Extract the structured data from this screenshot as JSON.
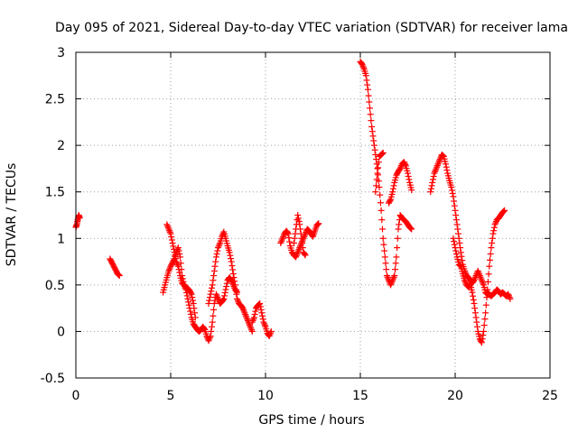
{
  "chart_data": {
    "type": "scatter",
    "title": "Day 095 of 2021, Sidereal Day-to-day VTEC variation (SDTVAR) for receiver lama",
    "xlabel": "GPS time / hours",
    "ylabel": "SDTVAR / TECUs",
    "xlim": [
      0,
      25
    ],
    "ylim": [
      -0.5,
      3
    ],
    "xticks": [
      0,
      5,
      10,
      15,
      20,
      25
    ],
    "xtick_labels": [
      "0",
      "5",
      "10",
      "15",
      "20",
      "25"
    ],
    "yticks": [
      -0.5,
      0,
      0.5,
      1,
      1.5,
      2,
      2.5,
      3
    ],
    "ytick_labels": [
      "-0.5",
      "0",
      "0.5",
      "1",
      "1.5",
      "2",
      "2.5",
      "3"
    ],
    "grid": true,
    "marker": "+",
    "color": "#ff0000",
    "series": [
      {
        "name": "SDTVAR",
        "segments": [
          [
            [
              0.0,
              1.12
            ],
            [
              0.05,
              1.15
            ],
            [
              0.1,
              1.2
            ],
            [
              0.15,
              1.25
            ],
            [
              0.2,
              1.22
            ]
          ],
          [
            [
              1.8,
              0.78
            ],
            [
              1.9,
              0.74
            ],
            [
              2.0,
              0.7
            ],
            [
              2.1,
              0.66
            ],
            [
              2.2,
              0.62
            ],
            [
              2.3,
              0.6
            ]
          ],
          [
            [
              4.6,
              0.42
            ],
            [
              4.7,
              0.5
            ],
            [
              4.8,
              0.58
            ],
            [
              4.9,
              0.65
            ],
            [
              5.0,
              0.7
            ],
            [
              5.1,
              0.74
            ],
            [
              5.2,
              0.78
            ],
            [
              5.3,
              0.85
            ],
            [
              5.4,
              0.9
            ],
            [
              5.5,
              0.8
            ],
            [
              5.6,
              0.6
            ],
            [
              5.7,
              0.5
            ],
            [
              5.8,
              0.45
            ],
            [
              5.9,
              0.35
            ],
            [
              6.0,
              0.25
            ],
            [
              6.1,
              0.15
            ],
            [
              6.2,
              0.08
            ],
            [
              6.3,
              0.05
            ],
            [
              6.4,
              0.02
            ],
            [
              6.5,
              0.0
            ],
            [
              6.6,
              0.02
            ],
            [
              6.7,
              0.05
            ],
            [
              6.8,
              0.02
            ],
            [
              6.9,
              -0.05
            ],
            [
              7.0,
              -0.1
            ],
            [
              7.1,
              -0.05
            ],
            [
              7.2,
              0.1
            ],
            [
              7.3,
              0.3
            ],
            [
              7.4,
              0.4
            ],
            [
              7.5,
              0.35
            ],
            [
              7.6,
              0.3
            ],
            [
              7.7,
              0.32
            ],
            [
              7.8,
              0.35
            ],
            [
              7.9,
              0.45
            ],
            [
              8.0,
              0.55
            ],
            [
              8.1,
              0.58
            ],
            [
              8.2,
              0.55
            ],
            [
              8.3,
              0.5
            ],
            [
              8.4,
              0.45
            ],
            [
              8.5,
              0.42
            ]
          ],
          [
            [
              4.8,
              1.15
            ],
            [
              4.9,
              1.1
            ],
            [
              5.0,
              1.05
            ],
            [
              5.1,
              0.95
            ],
            [
              5.2,
              0.85
            ],
            [
              5.3,
              0.75
            ],
            [
              5.4,
              0.7
            ],
            [
              5.5,
              0.6
            ],
            [
              5.6,
              0.52
            ],
            [
              5.7,
              0.5
            ],
            [
              5.8,
              0.48
            ],
            [
              5.9,
              0.46
            ],
            [
              6.0,
              0.44
            ],
            [
              6.1,
              0.4
            ],
            [
              6.2,
              0.3
            ],
            [
              6.3,
              0.15
            ]
          ],
          [
            [
              7.0,
              0.3
            ],
            [
              7.1,
              0.4
            ],
            [
              7.2,
              0.5
            ],
            [
              7.3,
              0.65
            ],
            [
              7.4,
              0.8
            ],
            [
              7.5,
              0.9
            ],
            [
              7.6,
              0.95
            ],
            [
              7.7,
              1.02
            ],
            [
              7.8,
              1.07
            ],
            [
              7.9,
              1.0
            ],
            [
              8.0,
              0.92
            ],
            [
              8.1,
              0.85
            ],
            [
              8.2,
              0.75
            ],
            [
              8.3,
              0.62
            ],
            [
              8.4,
              0.5
            ],
            [
              8.5,
              0.35
            ],
            [
              8.6,
              0.3
            ],
            [
              8.7,
              0.28
            ],
            [
              8.8,
              0.25
            ],
            [
              8.9,
              0.2
            ],
            [
              9.0,
              0.15
            ],
            [
              9.1,
              0.1
            ],
            [
              9.2,
              0.05
            ],
            [
              9.3,
              0.0
            ]
          ],
          [
            [
              9.3,
              0.1
            ],
            [
              9.4,
              0.15
            ],
            [
              9.5,
              0.25
            ],
            [
              9.6,
              0.28
            ],
            [
              9.7,
              0.3
            ],
            [
              9.8,
              0.2
            ],
            [
              9.9,
              0.1
            ],
            [
              10.0,
              0.05
            ],
            [
              10.1,
              -0.02
            ],
            [
              10.2,
              -0.05
            ],
            [
              10.3,
              0.0
            ]
          ],
          [
            [
              10.8,
              0.95
            ],
            [
              10.9,
              1.0
            ],
            [
              11.0,
              1.05
            ],
            [
              11.1,
              1.08
            ],
            [
              11.2,
              1.05
            ],
            [
              11.3,
              0.92
            ],
            [
              11.4,
              0.85
            ],
            [
              11.5,
              0.82
            ],
            [
              11.6,
              0.8
            ],
            [
              11.7,
              0.85
            ],
            [
              11.8,
              0.9
            ],
            [
              11.9,
              0.95
            ],
            [
              12.0,
              1.0
            ],
            [
              12.1,
              1.05
            ],
            [
              12.2,
              1.1
            ],
            [
              12.3,
              1.08
            ],
            [
              12.4,
              1.05
            ],
            [
              12.5,
              1.02
            ],
            [
              12.6,
              1.08
            ],
            [
              12.7,
              1.14
            ],
            [
              12.8,
              1.16
            ]
          ],
          [
            [
              11.5,
              0.95
            ],
            [
              11.6,
              1.1
            ],
            [
              11.7,
              1.25
            ],
            [
              11.8,
              1.15
            ],
            [
              11.9,
              1.0
            ],
            [
              12.0,
              0.85
            ],
            [
              12.1,
              0.82
            ]
          ],
          [
            [
              15.0,
              2.9
            ],
            [
              15.1,
              2.87
            ],
            [
              15.2,
              2.82
            ],
            [
              15.3,
              2.75
            ],
            [
              15.4,
              2.6
            ],
            [
              15.5,
              2.4
            ],
            [
              15.6,
              2.2
            ],
            [
              15.7,
              2.05
            ],
            [
              15.8,
              1.9
            ],
            [
              15.9,
              1.75
            ],
            [
              16.0,
              1.55
            ],
            [
              16.1,
              1.3
            ],
            [
              16.2,
              1.0
            ],
            [
              16.3,
              0.8
            ],
            [
              16.4,
              0.6
            ],
            [
              16.5,
              0.55
            ],
            [
              16.6,
              0.5
            ],
            [
              16.7,
              0.55
            ],
            [
              16.8,
              0.6
            ],
            [
              16.9,
              0.8
            ],
            [
              17.0,
              1.1
            ],
            [
              17.1,
              1.25
            ],
            [
              17.2,
              1.22
            ],
            [
              17.3,
              1.2
            ],
            [
              17.4,
              1.18
            ],
            [
              17.5,
              1.15
            ],
            [
              17.6,
              1.12
            ],
            [
              17.7,
              1.1
            ]
          ],
          [
            [
              15.8,
              1.5
            ],
            [
              15.9,
              1.7
            ],
            [
              16.0,
              1.88
            ],
            [
              16.1,
              1.9
            ],
            [
              16.2,
              1.92
            ]
          ],
          [
            [
              16.5,
              1.38
            ],
            [
              16.6,
              1.42
            ],
            [
              16.7,
              1.5
            ],
            [
              16.8,
              1.6
            ],
            [
              16.9,
              1.68
            ],
            [
              17.0,
              1.72
            ],
            [
              17.1,
              1.75
            ],
            [
              17.2,
              1.8
            ],
            [
              17.3,
              1.82
            ],
            [
              17.4,
              1.78
            ],
            [
              17.5,
              1.7
            ],
            [
              17.6,
              1.6
            ],
            [
              17.7,
              1.52
            ]
          ],
          [
            [
              18.7,
              1.5
            ],
            [
              18.8,
              1.6
            ],
            [
              18.9,
              1.7
            ],
            [
              19.0,
              1.75
            ],
            [
              19.1,
              1.8
            ],
            [
              19.2,
              1.85
            ],
            [
              19.3,
              1.9
            ],
            [
              19.4,
              1.88
            ],
            [
              19.5,
              1.8
            ],
            [
              19.6,
              1.7
            ],
            [
              19.7,
              1.62
            ],
            [
              19.8,
              1.55
            ],
            [
              19.9,
              1.45
            ],
            [
              20.0,
              1.3
            ],
            [
              20.1,
              1.15
            ],
            [
              20.2,
              1.0
            ],
            [
              20.3,
              0.85
            ],
            [
              20.4,
              0.72
            ],
            [
              20.5,
              0.65
            ],
            [
              20.6,
              0.6
            ],
            [
              20.7,
              0.58
            ],
            [
              20.8,
              0.55
            ],
            [
              20.9,
              0.52
            ],
            [
              21.0,
              0.55
            ],
            [
              21.1,
              0.6
            ],
            [
              21.2,
              0.65
            ],
            [
              21.3,
              0.6
            ],
            [
              21.4,
              0.55
            ],
            [
              21.5,
              0.5
            ],
            [
              21.6,
              0.42
            ],
            [
              21.7,
              0.4
            ]
          ],
          [
            [
              19.9,
              1.0
            ],
            [
              20.0,
              0.9
            ],
            [
              20.1,
              0.8
            ],
            [
              20.2,
              0.72
            ],
            [
              20.3,
              0.7
            ],
            [
              20.4,
              0.62
            ],
            [
              20.5,
              0.55
            ],
            [
              20.6,
              0.5
            ],
            [
              20.7,
              0.48
            ],
            [
              20.8,
              0.5
            ],
            [
              20.9,
              0.42
            ],
            [
              21.0,
              0.3
            ],
            [
              21.1,
              0.15
            ],
            [
              21.2,
              0.0
            ],
            [
              21.3,
              -0.08
            ],
            [
              21.4,
              -0.12
            ],
            [
              21.5,
              0.0
            ],
            [
              21.6,
              0.2
            ],
            [
              21.7,
              0.45
            ],
            [
              21.8,
              0.7
            ],
            [
              21.9,
              0.9
            ],
            [
              22.0,
              1.05
            ],
            [
              22.1,
              1.15
            ],
            [
              22.2,
              1.2
            ],
            [
              22.3,
              1.22
            ],
            [
              22.4,
              1.25
            ],
            [
              22.5,
              1.28
            ],
            [
              22.6,
              1.3
            ]
          ],
          [
            [
              21.7,
              0.42
            ],
            [
              21.8,
              0.4
            ],
            [
              21.9,
              0.38
            ],
            [
              22.0,
              0.4
            ],
            [
              22.1,
              0.42
            ],
            [
              22.2,
              0.45
            ],
            [
              22.3,
              0.43
            ],
            [
              22.4,
              0.4
            ],
            [
              22.5,
              0.42
            ],
            [
              22.6,
              0.4
            ],
            [
              22.7,
              0.38
            ],
            [
              22.8,
              0.4
            ],
            [
              22.9,
              0.35
            ]
          ]
        ]
      }
    ]
  }
}
